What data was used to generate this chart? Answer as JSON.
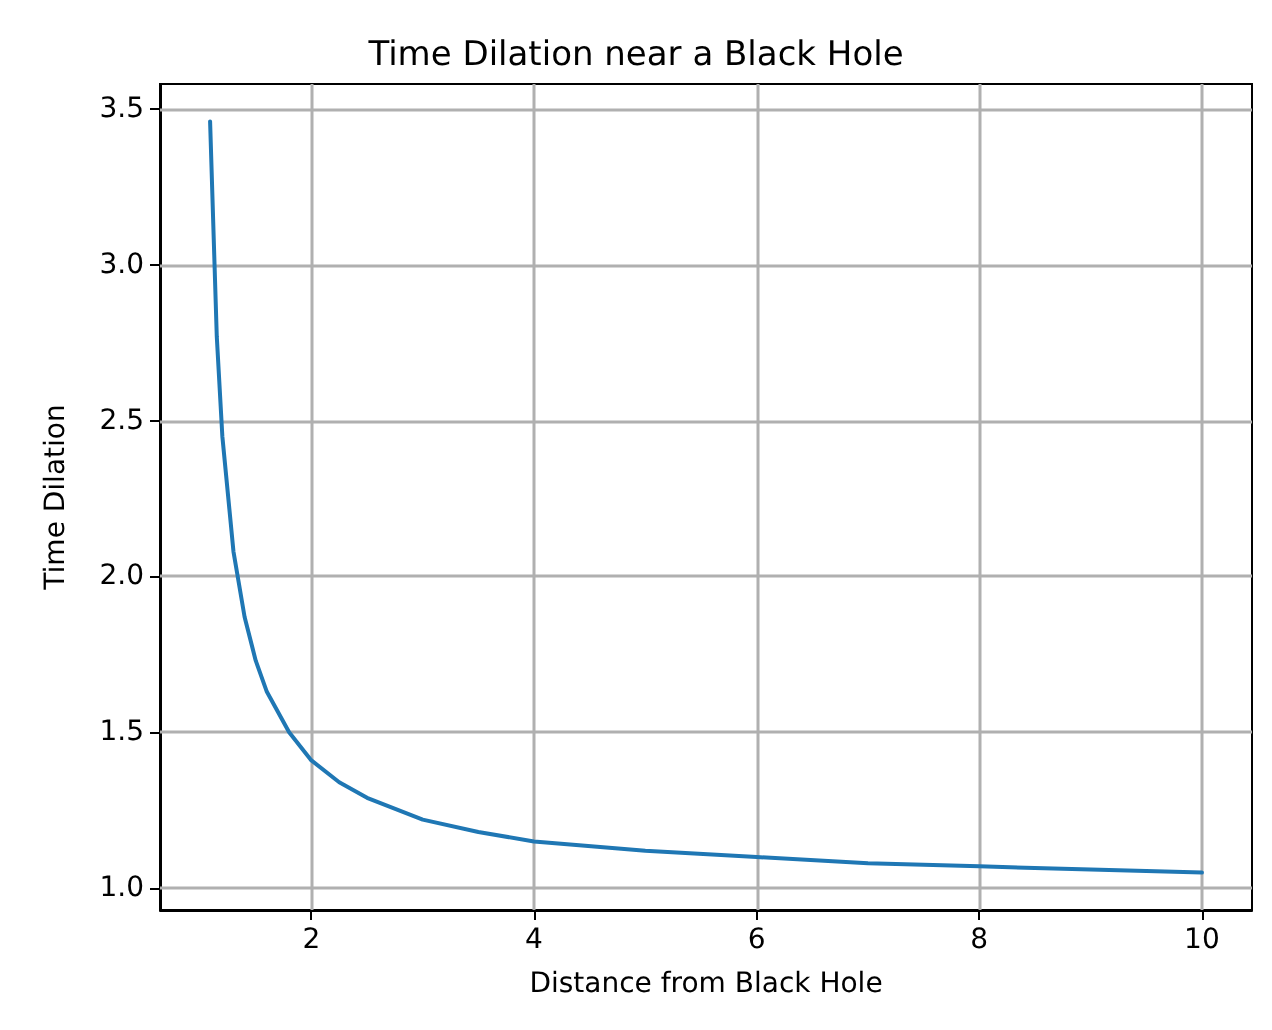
{
  "chart_data": {
    "type": "line",
    "title": "Time Dilation near a Black Hole",
    "xlabel": "Distance from Black Hole",
    "ylabel": "Time Dilation",
    "x": [
      1.09,
      1.15,
      1.2,
      1.3,
      1.4,
      1.5,
      1.6,
      1.8,
      2,
      2.25,
      2.5,
      3,
      3.5,
      4,
      5,
      6,
      7,
      8,
      9,
      10
    ],
    "series": [
      {
        "color": "#1f77b4",
        "values": [
          3.46,
          2.77,
          2.45,
          2.08,
          1.87,
          1.73,
          1.63,
          1.5,
          1.41,
          1.34,
          1.29,
          1.22,
          1.18,
          1.15,
          1.12,
          1.1,
          1.08,
          1.07,
          1.06,
          1.05
        ]
      }
    ],
    "xlim": [
      0.64,
      10.45
    ],
    "xticks": [
      2,
      4,
      6,
      8,
      10
    ],
    "ylim": [
      0.93,
      3.58
    ],
    "yticks": [
      {
        "value": 1,
        "label": "1.0"
      },
      1.5,
      {
        "value": 2,
        "label": "2.0"
      },
      2.5,
      {
        "value": 3,
        "label": "3.0"
      },
      3.5
    ],
    "grid": true,
    "marker": "none",
    "line_style": "solid"
  }
}
